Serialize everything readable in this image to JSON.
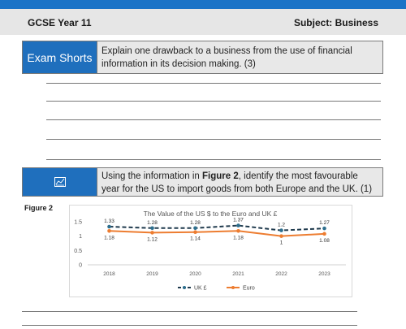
{
  "header": {
    "left": "GCSE Year 11",
    "right": "Subject: Business"
  },
  "question1": {
    "tag": "Exam Shorts",
    "text": "Explain one drawback to a business from the use of financial information in its decision making. (3)"
  },
  "question2": {
    "icon": "chart-icon",
    "text_parts": [
      "Using the information in ",
      "Figure 2",
      ", identify the most favourable year for the US to import goods from both Europe and the UK. (1)"
    ]
  },
  "figure_label": "Figure 2",
  "colors": {
    "accent": "#1f6fbd",
    "uk_series": "#1f3a4d",
    "euro_series": "#ed7d31"
  },
  "chart_data": {
    "type": "line",
    "title": "The Value of the US $ to the Euro and UK £",
    "categories": [
      "2018",
      "2019",
      "2020",
      "2021",
      "2022",
      "2023"
    ],
    "y_ticks": [
      "1.5",
      "1",
      "0.5",
      "0"
    ],
    "ylim": [
      0,
      1.5
    ],
    "grid": false,
    "legend": "bottom",
    "series": [
      {
        "name": "UK £",
        "values": [
          1.33,
          1.28,
          1.28,
          1.37,
          1.2,
          1.27
        ],
        "labels": [
          "1.33",
          "1.28",
          "1.28",
          "1.37",
          "1.2",
          "1.27"
        ],
        "style": "dashed"
      },
      {
        "name": "Euro",
        "values": [
          1.18,
          1.12,
          1.14,
          1.18,
          1,
          1.08
        ],
        "labels": [
          "1.18",
          "1.12",
          "1.14",
          "1.18",
          "1",
          "1.08"
        ],
        "style": "solid"
      }
    ]
  }
}
